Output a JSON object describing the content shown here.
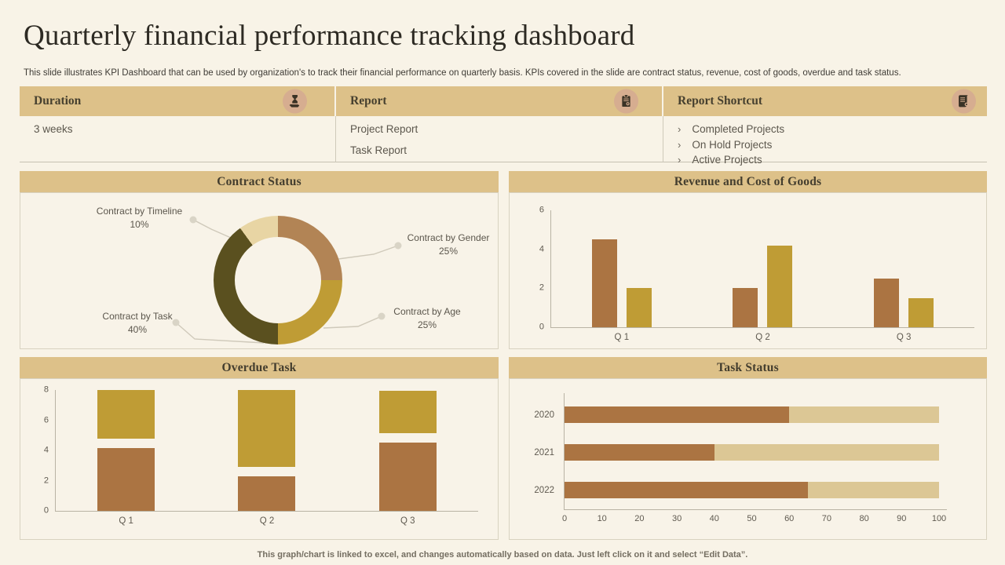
{
  "slide": {
    "title": "Quarterly financial performance tracking dashboard",
    "subtitle": "This slide illustrates KPI Dashboard that can be used by organization's to track their financial performance on quarterly basis. KPIs covered in the slide are contract status, revenue, cost of goods, overdue and task status.",
    "footer": "This graph/chart is linked to excel, and changes automatically based on data. Just left click on it and select “Edit Data”."
  },
  "info_table": {
    "columns": [
      {
        "header": "Duration",
        "icon": "hourglass-hand-icon",
        "items": [
          "3 weeks"
        ],
        "bullet": ""
      },
      {
        "header": "Report",
        "icon": "report-clipboard-icon",
        "items": [
          "Project Report",
          "Task Report"
        ],
        "bullet": ""
      },
      {
        "header": "Report Shortcut",
        "icon": "scroll-icon",
        "items": [
          "Completed Projects",
          "On Hold Projects",
          "Active Projects"
        ],
        "bullet": "›"
      }
    ]
  },
  "colors": {
    "page_bg": "#f8f3e7",
    "band": "#ddc189",
    "brown": "#ab7442",
    "gold": "#bf9c35",
    "dark_olive": "#5a501f",
    "cream_segment": "#e8d5a4",
    "light_tan": "#dcc795",
    "icon_circle": "#d6ad90",
    "axis_line": "#b9b3a4"
  },
  "chart_data": [
    {
      "id": "contract_status",
      "type": "pie",
      "donut": true,
      "title": "Contract Status",
      "legend_position": "callout-labels",
      "segments": [
        {
          "label": "Contract by Gender",
          "value": 25,
          "pct": "25%",
          "color": "#b28455"
        },
        {
          "label": "Contract by Age",
          "value": 25,
          "pct": "25%",
          "color": "#bf9c35"
        },
        {
          "label": "Contract by Task",
          "value": 40,
          "pct": "40%",
          "color": "#5a501f"
        },
        {
          "label": "Contract by Timeline",
          "value": 10,
          "pct": "10%",
          "color": "#e8d5a4"
        }
      ]
    },
    {
      "id": "revenue_cogs",
      "type": "bar",
      "title": "Revenue and Cost of Goods",
      "categories": [
        "Q 1",
        "Q 2",
        "Q 3"
      ],
      "series": [
        {
          "name": "Revenue",
          "color": "#ab7442",
          "values": [
            4.5,
            2.0,
            2.5
          ]
        },
        {
          "name": "Cost of Goods",
          "color": "#bf9c35",
          "values": [
            2.0,
            4.2,
            1.5
          ]
        }
      ],
      "ylim": [
        0,
        6
      ],
      "yticks": [
        0,
        2,
        4,
        6
      ],
      "grid": false,
      "legend": false
    },
    {
      "id": "overdue_task",
      "type": "bar",
      "stacked": true,
      "title": "Overdue Task",
      "categories": [
        "Q 1",
        "Q 2",
        "Q 3"
      ],
      "series": [
        {
          "name": "series_1",
          "color": "#ab7442",
          "values": [
            4.5,
            2.5,
            4.5
          ]
        },
        {
          "name": "series_2",
          "color": "#bf9c35",
          "values": [
            3.5,
            5.5,
            2.8
          ]
        }
      ],
      "ylim": [
        0,
        8
      ],
      "yticks": [
        0,
        2,
        4,
        6,
        8
      ],
      "grid": false,
      "legend": false
    },
    {
      "id": "task_status",
      "type": "bar",
      "orientation": "horizontal",
      "stacked": true,
      "title": "Task Status",
      "categories": [
        "2020",
        "2021",
        "2022"
      ],
      "series": [
        {
          "name": "series_1",
          "color": "#ab7442",
          "values": [
            60,
            40,
            65
          ]
        },
        {
          "name": "series_2",
          "color": "#dcc795",
          "values": [
            40,
            60,
            35
          ]
        }
      ],
      "xlim": [
        0,
        100
      ],
      "xticks": [
        0,
        10,
        20,
        30,
        40,
        50,
        60,
        70,
        80,
        90,
        100
      ],
      "grid": false,
      "legend": false
    }
  ]
}
